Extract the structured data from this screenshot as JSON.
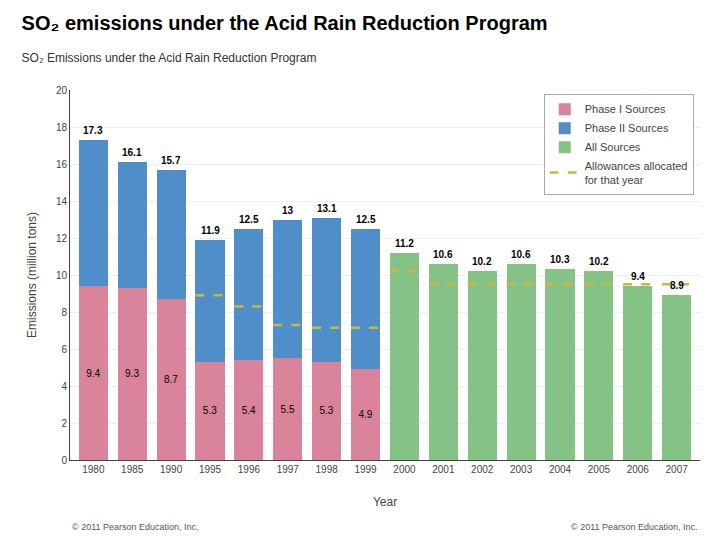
{
  "chart_data": {
    "type": "bar",
    "stacked": true,
    "title": "SO₂ emissions under the Acid Rain Reduction Program",
    "subtitle": "SO₂ Emissions under the Acid Rain Reduction Program",
    "xlabel": "Year",
    "ylabel": "Emissions (million tons)",
    "categories": [
      "1980",
      "1985",
      "1990",
      "1995",
      "1996",
      "1997",
      "1998",
      "1999",
      "2000",
      "2001",
      "2002",
      "2003",
      "2004",
      "2005",
      "2006",
      "2007"
    ],
    "series": [
      {
        "name": "Phase I Sources",
        "color": "#d9849a",
        "data_labels": true,
        "values": [
          9.4,
          9.3,
          8.7,
          5.3,
          5.4,
          5.5,
          5.3,
          4.9,
          null,
          null,
          null,
          null,
          null,
          null,
          null,
          null
        ]
      },
      {
        "name": "Phase II Sources",
        "color": "#4f8ec9",
        "values": [
          7.9,
          6.8,
          7.0,
          6.6,
          7.1,
          7.5,
          7.8,
          7.6,
          null,
          null,
          null,
          null,
          null,
          null,
          null,
          null
        ]
      },
      {
        "name": "All Sources",
        "color": "#85c285",
        "values": [
          null,
          null,
          null,
          null,
          null,
          null,
          null,
          null,
          11.2,
          10.6,
          10.2,
          10.6,
          10.3,
          10.2,
          9.4,
          8.9
        ]
      },
      {
        "name": "Allowances allocated\nfor that year",
        "type": "line",
        "line_style": "dashed",
        "color": "#c8b840",
        "values": [
          null,
          null,
          null,
          8.9,
          8.3,
          7.3,
          7.15,
          7.15,
          10.25,
          9.5,
          9.5,
          9.5,
          9.5,
          9.5,
          9.5,
          9.5
        ]
      }
    ],
    "totals": [
      17.3,
      16.1,
      15.7,
      11.9,
      12.5,
      13.0,
      13.1,
      12.5,
      11.2,
      10.6,
      10.2,
      10.6,
      10.3,
      10.2,
      9.4,
      8.9
    ],
    "ylim": [
      0,
      20
    ],
    "yticks": [
      0,
      2,
      4,
      6,
      8,
      10,
      12,
      14,
      16,
      18,
      20
    ],
    "grid": true,
    "legend": "upper right",
    "annotations": [
      "© 2011 Pearson Education, Inc.",
      "© 2011 Pearson Education, Inc."
    ]
  }
}
